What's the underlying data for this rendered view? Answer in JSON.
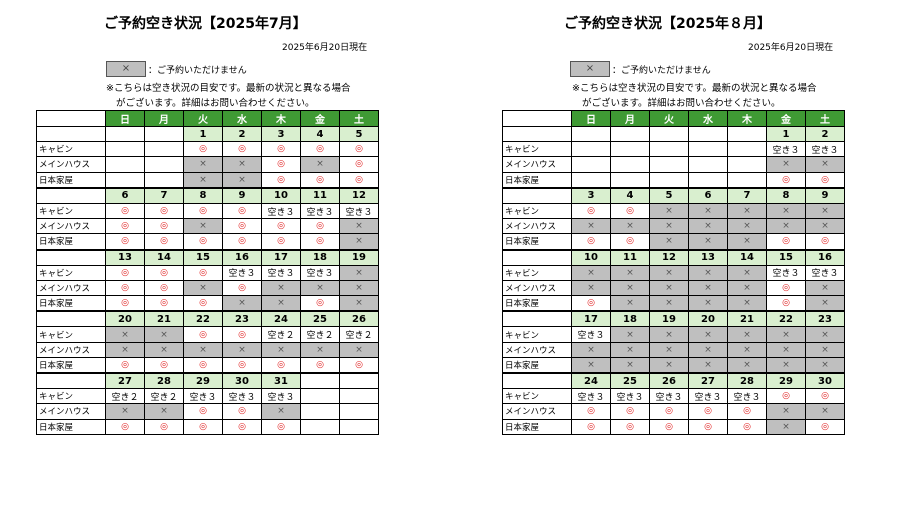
{
  "common": {
    "as_of": "2025年6月20日現在",
    "legend_symbol": "×",
    "legend_text": "：ご予約いただけません",
    "note_line1": "※こちらは空き状況の目安です。最新の状況と異なる場合",
    "note_line2": "がございます。詳細はお問い合わせください。",
    "weekdays": [
      "日",
      "月",
      "火",
      "水",
      "木",
      "金",
      "土"
    ],
    "rooms": [
      "キャビン",
      "メインハウス",
      "日本家屋"
    ]
  },
  "july": {
    "title": "ご予約空き状況【2025年7月】",
    "weeks": [
      {
        "dates": [
          "",
          "",
          "1",
          "2",
          "3",
          "4",
          "5"
        ],
        "rows": [
          [
            "",
            "",
            "◎",
            "◎",
            "◎",
            "◎",
            "◎"
          ],
          [
            "",
            "",
            "×",
            "×",
            "◎",
            "×",
            "◎"
          ],
          [
            "",
            "",
            "×",
            "×",
            "◎",
            "◎",
            "◎"
          ]
        ]
      },
      {
        "dates": [
          "6",
          "7",
          "8",
          "9",
          "10",
          "11",
          "12"
        ],
        "rows": [
          [
            "◎",
            "◎",
            "◎",
            "◎",
            "空き３",
            "空き３",
            "空き３"
          ],
          [
            "◎",
            "◎",
            "×",
            "◎",
            "◎",
            "◎",
            "×"
          ],
          [
            "◎",
            "◎",
            "◎",
            "◎",
            "◎",
            "◎",
            "×"
          ]
        ]
      },
      {
        "dates": [
          "13",
          "14",
          "15",
          "16",
          "17",
          "18",
          "19"
        ],
        "rows": [
          [
            "◎",
            "◎",
            "◎",
            "空き３",
            "空き３",
            "空き３",
            "×"
          ],
          [
            "◎",
            "◎",
            "×",
            "◎",
            "×",
            "×",
            "×"
          ],
          [
            "◎",
            "◎",
            "◎",
            "×",
            "×",
            "◎",
            "×"
          ]
        ]
      },
      {
        "dates": [
          "20",
          "21",
          "22",
          "23",
          "24",
          "25",
          "26"
        ],
        "rows": [
          [
            "×",
            "×",
            "◎",
            "◎",
            "空き２",
            "空き２",
            "空き２"
          ],
          [
            "×",
            "×",
            "×",
            "×",
            "×",
            "×",
            "×"
          ],
          [
            "◎",
            "◎",
            "◎",
            "◎",
            "◎",
            "◎",
            "◎"
          ]
        ]
      },
      {
        "dates": [
          "27",
          "28",
          "29",
          "30",
          "31",
          "",
          ""
        ],
        "rows": [
          [
            "空き２",
            "空き２",
            "空き３",
            "空き３",
            "空き３",
            "",
            ""
          ],
          [
            "×",
            "×",
            "◎",
            "◎",
            "×",
            "",
            ""
          ],
          [
            "◎",
            "◎",
            "◎",
            "◎",
            "◎",
            "",
            ""
          ]
        ]
      }
    ]
  },
  "august": {
    "title": "ご予約空き状況【2025年８月】",
    "weeks": [
      {
        "dates": [
          "",
          "",
          "",
          "",
          "",
          "1",
          "2"
        ],
        "rows": [
          [
            "",
            "",
            "",
            "",
            "",
            "空き３",
            "空き３"
          ],
          [
            "",
            "",
            "",
            "",
            "",
            "×",
            "×"
          ],
          [
            "",
            "",
            "",
            "",
            "",
            "◎",
            "◎"
          ]
        ]
      },
      {
        "dates": [
          "3",
          "4",
          "5",
          "6",
          "7",
          "8",
          "9"
        ],
        "rows": [
          [
            "◎",
            "◎",
            "×",
            "×",
            "×",
            "×",
            "×"
          ],
          [
            "×",
            "×",
            "×",
            "×",
            "×",
            "×",
            "×"
          ],
          [
            "◎",
            "◎",
            "×",
            "×",
            "×",
            "◎",
            "◎"
          ]
        ]
      },
      {
        "dates": [
          "10",
          "11",
          "12",
          "13",
          "14",
          "15",
          "16"
        ],
        "rows": [
          [
            "×",
            "×",
            "×",
            "×",
            "×",
            "空き３",
            "空き３"
          ],
          [
            "×",
            "×",
            "×",
            "×",
            "×",
            "◎",
            "×"
          ],
          [
            "◎",
            "×",
            "×",
            "×",
            "×",
            "◎",
            "×"
          ]
        ]
      },
      {
        "dates": [
          "17",
          "18",
          "19",
          "20",
          "21",
          "22",
          "23"
        ],
        "rows": [
          [
            "空き３",
            "×",
            "×",
            "×",
            "×",
            "×",
            "×"
          ],
          [
            "×",
            "×",
            "×",
            "×",
            "×",
            "×",
            "×"
          ],
          [
            "×",
            "×",
            "×",
            "×",
            "×",
            "×",
            "×"
          ]
        ]
      },
      {
        "dates": [
          "24",
          "25",
          "26",
          "27",
          "28",
          "29",
          "30"
        ],
        "rows": [
          [
            "空き３",
            "空き３",
            "空き３",
            "空き３",
            "空き３",
            "◎",
            "◎"
          ],
          [
            "◎",
            "◎",
            "◎",
            "◎",
            "◎",
            "×",
            "×"
          ],
          [
            "◎",
            "◎",
            "◎",
            "◎",
            "◎",
            "×",
            "◎"
          ]
        ]
      }
    ]
  }
}
